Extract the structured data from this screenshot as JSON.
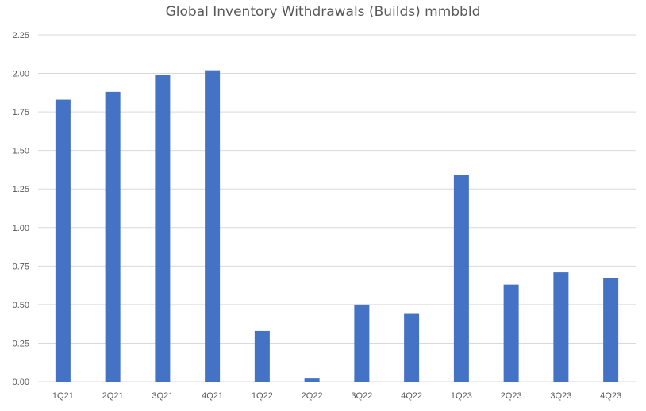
{
  "chart_data": {
    "type": "bar",
    "title": "Global Inventory Withdrawals (Builds) mmbbld",
    "xlabel": "",
    "ylabel": "",
    "categories": [
      "1Q21",
      "2Q21",
      "3Q21",
      "4Q21",
      "1Q22",
      "2Q22",
      "3Q22",
      "4Q22",
      "1Q23",
      "2Q23",
      "3Q23",
      "4Q23"
    ],
    "series": [
      {
        "values": [
          1.83,
          1.88,
          1.99,
          2.02,
          0.33,
          0.02,
          0.5,
          0.44,
          1.34,
          0.63,
          0.71,
          0.67
        ]
      }
    ],
    "ylim": [
      0,
      2.25
    ],
    "yticks": [
      "0.00",
      "0.25",
      "0.50",
      "0.75",
      "1.00",
      "1.25",
      "1.50",
      "1.75",
      "2.00",
      "2.25"
    ],
    "grid": true,
    "legend": "none",
    "bar_color": "#4472C4"
  }
}
